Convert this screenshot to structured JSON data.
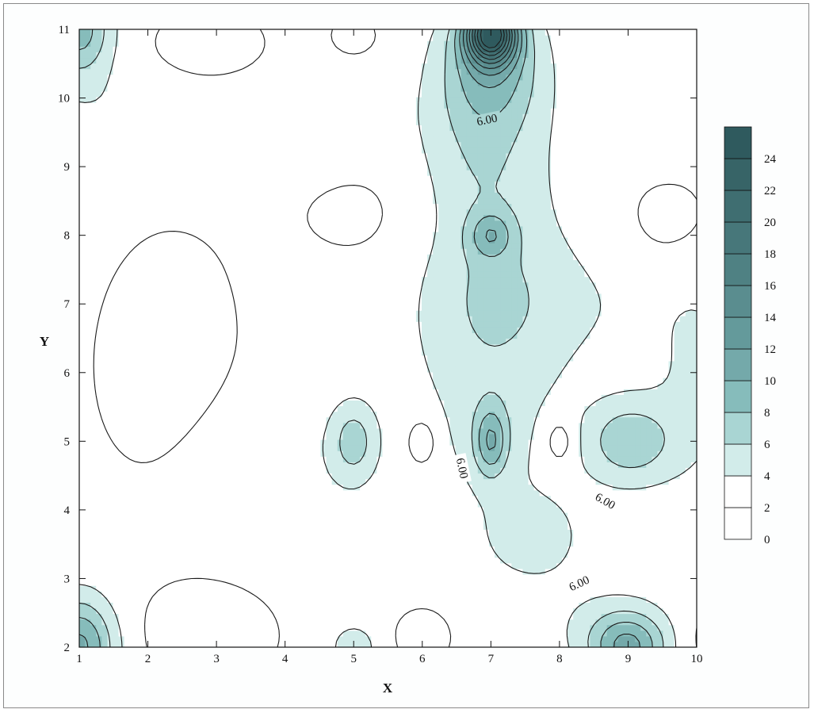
{
  "chart_data": {
    "type": "contour",
    "xlabel": "X",
    "ylabel": "Y",
    "xlim": [
      1,
      10
    ],
    "ylim": [
      2,
      11
    ],
    "x_ticks": [
      1,
      2,
      3,
      4,
      5,
      6,
      7,
      8,
      9,
      10
    ],
    "y_ticks": [
      2,
      3,
      4,
      5,
      6,
      7,
      8,
      9,
      10,
      11
    ],
    "contour_levels": [
      0,
      2,
      4,
      6,
      8,
      10,
      12,
      14,
      16,
      18,
      20,
      22,
      24
    ],
    "colorbar_labels": [
      "0",
      "2",
      "4",
      "6",
      "8",
      "10",
      "12",
      "14",
      "16",
      "18",
      "20",
      "22",
      "24"
    ],
    "colorbar_range": [
      0,
      26
    ],
    "level_colors": [
      "#ffffff",
      "#ffffff",
      "#d2ecea",
      "#a9d5d3",
      "#86bcbb",
      "#74a9aa",
      "#649a9b",
      "#5a8d8f",
      "#4f8183",
      "#47777a",
      "#3f6e71",
      "#376467",
      "#2f5a5e"
    ],
    "contour_labels": [
      {
        "text": "6.00",
        "x": 6.95,
        "y": 9.65,
        "angle": -12
      },
      {
        "text": "6.00",
        "x": 6.55,
        "y": 4.6,
        "angle": 78
      },
      {
        "text": "6.00",
        "x": 8.65,
        "y": 4.1,
        "angle": 30
      },
      {
        "text": "6.00",
        "x": 8.3,
        "y": 2.9,
        "angle": -25
      }
    ],
    "peaks": [
      {
        "x": 7.0,
        "y": 11.0,
        "value": 25
      },
      {
        "x": 7.0,
        "y": 5.0,
        "value": 14
      },
      {
        "x": 9.0,
        "y": 2.0,
        "value": 12
      },
      {
        "x": 1.0,
        "y": 2.0,
        "value": 12
      },
      {
        "x": 1.0,
        "y": 11.0,
        "value": 10
      },
      {
        "x": 9.0,
        "y": 5.0,
        "value": 9
      },
      {
        "x": 5.0,
        "y": 5.0,
        "value": 8
      },
      {
        "x": 7.0,
        "y": 8.0,
        "value": 8
      }
    ],
    "grid": false,
    "legend": "colorbar-right"
  }
}
